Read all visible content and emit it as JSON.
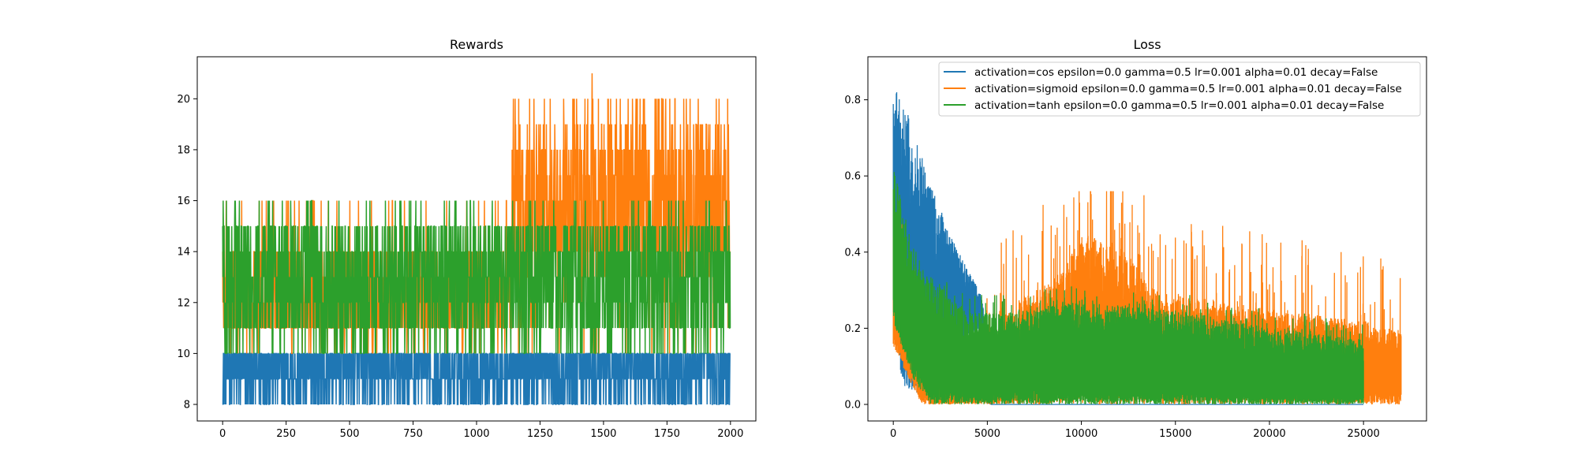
{
  "colors": {
    "cos": "#1f77b4",
    "sigmoid": "#ff7f0e",
    "tanh": "#2ca02c"
  },
  "chart_data": [
    {
      "type": "line",
      "title": "Rewards",
      "xlabel": "",
      "ylabel": "",
      "xlim": [
        -100,
        2100
      ],
      "ylim": [
        7.35,
        21.65
      ],
      "xticks": [
        0,
        250,
        500,
        750,
        1000,
        1250,
        1500,
        1750,
        2000
      ],
      "yticks": [
        8,
        10,
        12,
        14,
        16,
        18,
        20
      ],
      "legend": null,
      "grid": false,
      "series": [
        {
          "key": "cos",
          "n": 2000,
          "baseline": [
            9,
            10
          ],
          "typical_range": [
            8,
            10
          ],
          "max": 10,
          "min": 8
        },
        {
          "key": "sigmoid",
          "n": 2000,
          "segments": [
            {
              "x_start": 0,
              "x_end": 1140,
              "typical_range": [
                10,
                15
              ],
              "max": 16
            },
            {
              "x_start": 1140,
              "x_end": 2000,
              "typical_range": [
                13,
                18
              ],
              "max": 21,
              "peak_x": 1455
            }
          ]
        },
        {
          "key": "tanh",
          "n": 2000,
          "typical_range": [
            10,
            15
          ],
          "max": 16,
          "min": 10
        }
      ]
    },
    {
      "type": "line",
      "title": "Loss",
      "xlabel": "",
      "ylabel": "",
      "xlim": [
        -1350,
        28350
      ],
      "ylim": [
        -0.0435,
        0.913
      ],
      "xticks": [
        0,
        5000,
        10000,
        15000,
        20000,
        25000
      ],
      "yticks": [
        0.0,
        0.2,
        0.4,
        0.6,
        0.8
      ],
      "grid": false,
      "legend_position": "upper right",
      "series": [
        {
          "key": "cos",
          "name": "activation=cos epsilon=0.0 gamma=0.5 lr=0.001 alpha=0.01 decay=False",
          "n_points": 25000,
          "upper_envelope": [
            [
              0,
              0.87
            ],
            [
              1000,
              0.73
            ],
            [
              2000,
              0.58
            ],
            [
              3000,
              0.45
            ],
            [
              4000,
              0.35
            ],
            [
              4800,
              0.28
            ],
            [
              5200,
              0.0
            ]
          ],
          "lower_envelope": [
            [
              0,
              0.2
            ],
            [
              500,
              0.05
            ],
            [
              1500,
              0.02
            ],
            [
              3000,
              0.13
            ],
            [
              4500,
              0.2
            ],
            [
              5000,
              0.0
            ]
          ]
        },
        {
          "key": "sigmoid",
          "name": "activation=sigmoid epsilon=0.0 gamma=0.5 lr=0.001 alpha=0.01 decay=False",
          "n_points": 27000,
          "upper_envelope": [
            [
              0,
              0.48
            ],
            [
              1000,
              0.3
            ],
            [
              2000,
              0.15
            ],
            [
              3000,
              0.05
            ],
            [
              5000,
              0.2
            ],
            [
              7000,
              0.28
            ],
            [
              9000,
              0.35
            ],
            [
              10000,
              0.45
            ],
            [
              12000,
              0.42
            ],
            [
              14000,
              0.3
            ],
            [
              20000,
              0.25
            ],
            [
              25000,
              0.22
            ],
            [
              27000,
              0.19
            ]
          ],
          "lower_envelope": [
            [
              0,
              0.15
            ],
            [
              1500,
              0.0
            ],
            [
              27000,
              0.0
            ]
          ],
          "spike_max": 0.56
        },
        {
          "key": "tanh",
          "name": "activation=tanh epsilon=0.0 gamma=0.5 lr=0.001 alpha=0.01 decay=False",
          "n_points": 25000,
          "upper_envelope": [
            [
              0,
              0.63
            ],
            [
              1000,
              0.42
            ],
            [
              2000,
              0.34
            ],
            [
              4000,
              0.24
            ],
            [
              6000,
              0.24
            ],
            [
              9000,
              0.27
            ],
            [
              12000,
              0.26
            ],
            [
              16000,
              0.24
            ],
            [
              20000,
              0.2
            ],
            [
              25000,
              0.17
            ]
          ],
          "lower_envelope": [
            [
              0,
              0.22
            ],
            [
              1000,
              0.07
            ],
            [
              2000,
              0.0
            ],
            [
              25000,
              0.0
            ]
          ]
        }
      ]
    }
  ]
}
